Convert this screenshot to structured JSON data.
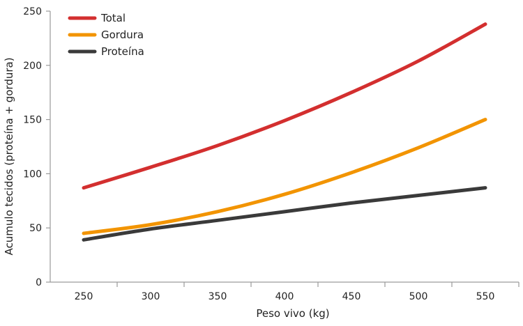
{
  "chart_data": {
    "type": "line",
    "title": "",
    "xlabel": "Peso vivo (kg)",
    "ylabel": "Acumulo tecidos (proteína + gordura)",
    "xlim": [
      225,
      575
    ],
    "ylim": [
      0,
      250
    ],
    "xticks": [
      250,
      300,
      350,
      400,
      450,
      500,
      550
    ],
    "yticks": [
      0,
      50,
      100,
      150,
      200,
      250
    ],
    "grid": false,
    "legend_position": "top-left",
    "x": [
      250,
      300,
      350,
      400,
      450,
      500,
      550
    ],
    "series": [
      {
        "name": "Total",
        "color": "#d32f2f",
        "values": [
          87,
          106,
          126,
          149,
          175,
          204,
          238
        ]
      },
      {
        "name": "Gordura",
        "color": "#f29400",
        "values": [
          45,
          53,
          65,
          81,
          101,
          124,
          150
        ]
      },
      {
        "name": "Proteína",
        "color": "#3a3a3a",
        "values": [
          39,
          49,
          57,
          65,
          73,
          80,
          87
        ]
      }
    ]
  }
}
